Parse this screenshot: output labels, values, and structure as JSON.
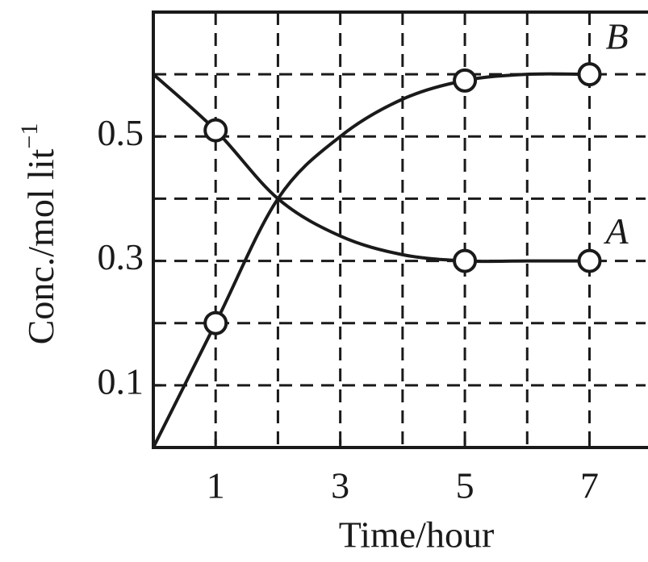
{
  "chart_data": {
    "type": "line",
    "xlabel": "Time/hour",
    "ylabel": "Conc./mol lit",
    "ylabel_exponent": "−1",
    "x": [
      0,
      1,
      2,
      3,
      4,
      5,
      6,
      7
    ],
    "series": [
      {
        "name": "A",
        "color": "#1a1a1a",
        "values": [
          0.6,
          0.51,
          0.4,
          0.34,
          0.31,
          0.3,
          0.3,
          0.3
        ]
      },
      {
        "name": "B",
        "color": "#1a1a1a",
        "values": [
          0,
          0.2,
          0.4,
          0.5,
          0.56,
          0.59,
          0.6,
          0.6
        ]
      }
    ],
    "markers_at_x": [
      1,
      5,
      7
    ],
    "xlim": [
      0,
      7.9
    ],
    "ylim": [
      0,
      0.7
    ],
    "xticks": [
      1,
      3,
      5,
      7
    ],
    "yticks": [
      0.1,
      0.3,
      0.5
    ],
    "x_grid": [
      1,
      2,
      3,
      4,
      5,
      6,
      7
    ],
    "y_grid": [
      0.1,
      0.2,
      0.3,
      0.4,
      0.5,
      0.6
    ],
    "grid": true
  }
}
